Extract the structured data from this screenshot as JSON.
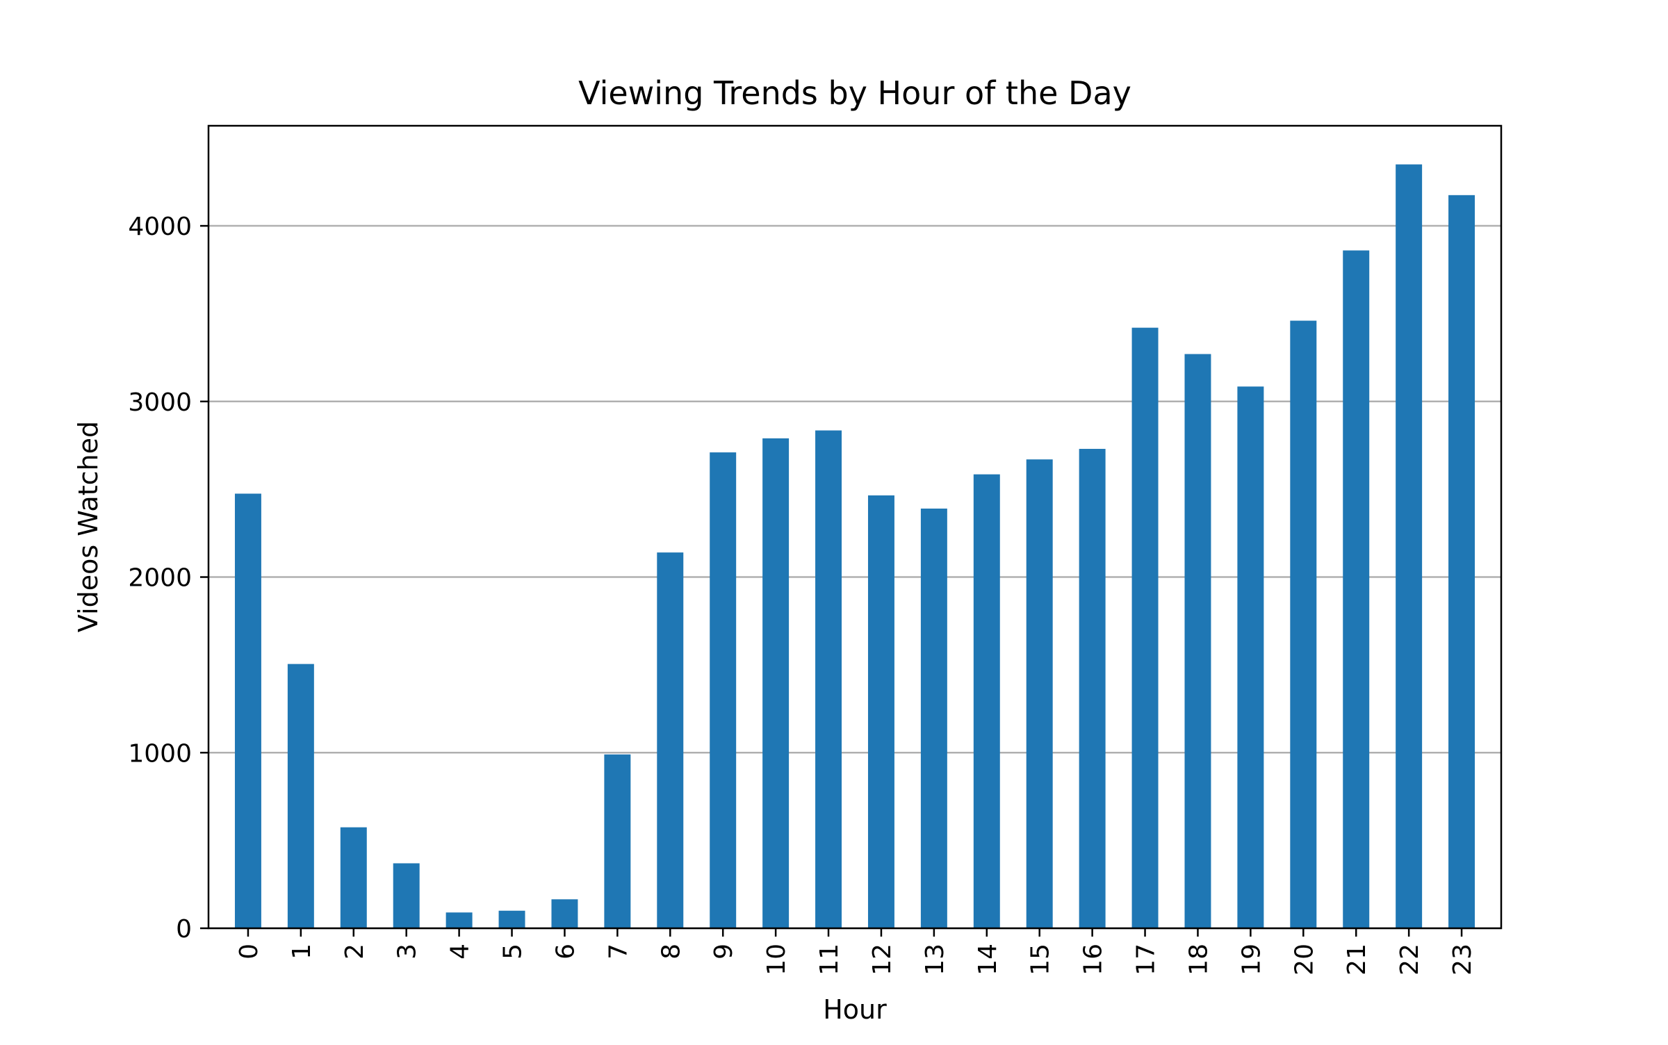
{
  "chart_data": {
    "type": "bar",
    "title": "Viewing Trends by Hour of the Day",
    "xlabel": "Hour",
    "ylabel": "Videos Watched",
    "categories": [
      "0",
      "1",
      "2",
      "3",
      "4",
      "5",
      "6",
      "7",
      "8",
      "9",
      "10",
      "11",
      "12",
      "13",
      "14",
      "15",
      "16",
      "17",
      "18",
      "19",
      "20",
      "21",
      "22",
      "23"
    ],
    "values": [
      2475,
      1505,
      575,
      370,
      90,
      100,
      165,
      990,
      2140,
      2710,
      2790,
      2835,
      2465,
      2390,
      2585,
      2670,
      2730,
      3420,
      3270,
      3085,
      3460,
      3860,
      4350,
      4175
    ],
    "ylim": [
      0,
      4570
    ],
    "yticks": [
      0,
      1000,
      2000,
      3000,
      4000
    ],
    "grid": "y",
    "bar_color": "#1f77b4",
    "grid_color": "#b0b0b0"
  }
}
